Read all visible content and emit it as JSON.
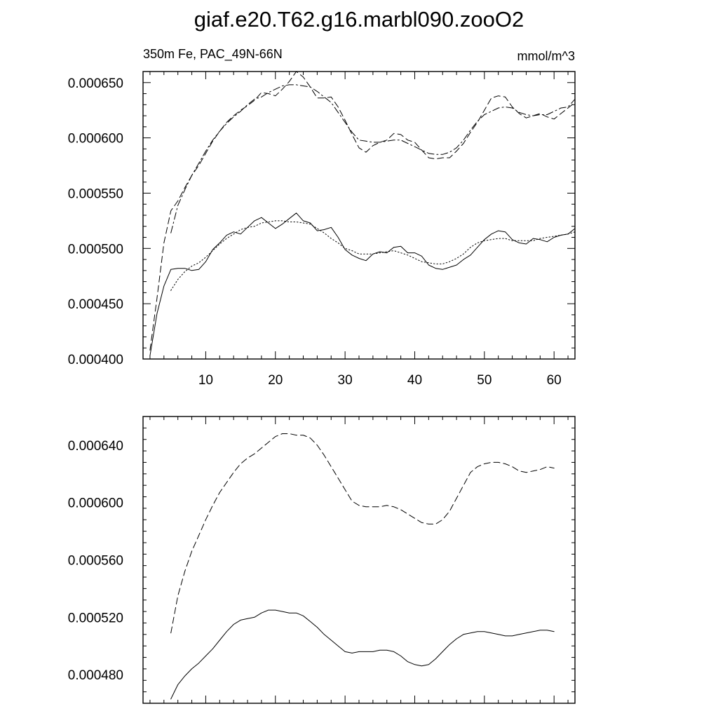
{
  "figure": {
    "title": "giaf.e20.T62.g16.marbl090.zooO2",
    "left_string": "350m Fe, PAC_49N-66N",
    "right_string": "mmol/m^3"
  },
  "chart_data": [
    {
      "type": "line",
      "xlim": [
        1,
        63
      ],
      "ylim": [
        0.0004,
        0.00066
      ],
      "xticks": [
        10,
        20,
        30,
        40,
        50,
        60
      ],
      "xtick_labels": [
        "10",
        "20",
        "30",
        "40",
        "50",
        "60"
      ],
      "yticks": [
        0.0004,
        0.00045,
        0.0005,
        0.00055,
        0.0006,
        0.00065
      ],
      "ytick_labels": [
        "0.000400",
        "0.000450",
        "0.000500",
        "0.000550",
        "0.000600",
        "0.000650"
      ],
      "grid": false,
      "series": [
        {
          "style": "dash",
          "x": [
            2,
            3,
            4,
            5,
            6,
            7,
            8,
            9,
            10,
            11,
            12,
            13,
            14,
            15,
            16,
            17,
            18,
            19,
            20,
            21,
            22,
            23,
            24,
            25,
            26,
            27,
            28,
            29,
            30,
            31,
            32,
            33,
            34,
            35,
            36,
            37,
            38,
            39,
            40,
            41,
            42,
            43,
            44,
            45,
            46,
            47,
            48,
            49,
            50,
            51,
            52,
            53,
            54,
            55,
            56,
            57,
            58,
            59,
            60,
            61,
            62,
            63
          ],
          "y": [
            0.000408,
            0.000455,
            0.000505,
            0.000534,
            0.000543,
            0.000555,
            0.000566,
            0.000575,
            0.000586,
            0.000597,
            0.000606,
            0.000614,
            0.00062,
            0.000625,
            0.000629,
            0.000634,
            0.000641,
            0.00064,
            0.000638,
            0.000644,
            0.000651,
            0.00066,
            0.000655,
            0.000646,
            0.000636,
            0.000636,
            0.000637,
            0.000628,
            0.000616,
            0.000603,
            0.000591,
            0.000587,
            0.000593,
            0.000596,
            0.000598,
            0.000604,
            0.000603,
            0.000598,
            0.000596,
            0.000589,
            0.000582,
            0.000581,
            0.000582,
            0.000582,
            0.000588,
            0.000595,
            0.000605,
            0.000614,
            0.000625,
            0.000636,
            0.000638,
            0.000637,
            0.000628,
            0.000622,
            0.000618,
            0.00062,
            0.000622,
            0.000619,
            0.000617,
            0.000622,
            0.000627,
            0.000632
          ]
        },
        {
          "style": "dashdot",
          "x": [
            5,
            6,
            7,
            8,
            9,
            10,
            11,
            12,
            13,
            14,
            15,
            16,
            17,
            18,
            19,
            20,
            21,
            22,
            23,
            24,
            25,
            26,
            27,
            28,
            29,
            30,
            31,
            32,
            33,
            34,
            35,
            36,
            37,
            38,
            39,
            40,
            41,
            42,
            43,
            44,
            45,
            46,
            47,
            48,
            49,
            50,
            51,
            52,
            53,
            54,
            55,
            56,
            57,
            58,
            59,
            60,
            61,
            62,
            63
          ],
          "y": [
            0.000514,
            0.000539,
            0.000553,
            0.000566,
            0.000577,
            0.000588,
            0.000598,
            0.000606,
            0.000613,
            0.000619,
            0.000624,
            0.00063,
            0.000635,
            0.000637,
            0.000641,
            0.000644,
            0.000647,
            0.000648,
            0.000648,
            0.000647,
            0.000646,
            0.000642,
            0.000637,
            0.000632,
            0.000623,
            0.000614,
            0.000605,
            0.000598,
            0.000597,
            0.000596,
            0.000596,
            0.000597,
            0.000598,
            0.000598,
            0.000595,
            0.000592,
            0.000589,
            0.000586,
            0.000585,
            0.000585,
            0.000587,
            0.000591,
            0.000598,
            0.000607,
            0.000615,
            0.000621,
            0.000624,
            0.000627,
            0.000628,
            0.000627,
            0.000623,
            0.000621,
            0.00062,
            0.000621,
            0.000621,
            0.000624,
            0.000627,
            0.000628,
            0.000635
          ]
        },
        {
          "style": "solid",
          "x": [
            2,
            3,
            4,
            5,
            6,
            7,
            8,
            9,
            10,
            11,
            12,
            13,
            14,
            15,
            16,
            17,
            18,
            19,
            20,
            21,
            22,
            23,
            24,
            25,
            26,
            27,
            28,
            29,
            30,
            31,
            32,
            33,
            34,
            35,
            36,
            37,
            38,
            39,
            40,
            41,
            42,
            43,
            44,
            45,
            46,
            47,
            48,
            49,
            50,
            51,
            52,
            53,
            54,
            55,
            56,
            57,
            58,
            59,
            60,
            61,
            62,
            63
          ],
          "y": [
            0.000403,
            0.000441,
            0.000466,
            0.000481,
            0.000482,
            0.000482,
            0.00048,
            0.000481,
            0.000488,
            0.000499,
            0.000505,
            0.000512,
            0.000515,
            0.000513,
            0.000519,
            0.000525,
            0.000528,
            0.000523,
            0.000518,
            0.000522,
            0.000527,
            0.000532,
            0.000525,
            0.000523,
            0.000516,
            0.000517,
            0.000519,
            0.00051,
            0.000499,
            0.000494,
            0.000491,
            0.000489,
            0.000495,
            0.000497,
            0.000496,
            0.000501,
            0.000502,
            0.000496,
            0.000496,
            0.000493,
            0.000485,
            0.000482,
            0.000481,
            0.000483,
            0.000485,
            0.00049,
            0.000494,
            0.000501,
            0.000508,
            0.000513,
            0.000516,
            0.000515,
            0.000508,
            0.000505,
            0.000504,
            0.000509,
            0.000508,
            0.000506,
            0.00051,
            0.000512,
            0.000513,
            0.000518
          ]
        },
        {
          "style": "dot",
          "x": [
            5,
            6,
            7,
            8,
            9,
            10,
            11,
            12,
            13,
            14,
            15,
            16,
            17,
            18,
            19,
            20,
            21,
            22,
            23,
            24,
            25,
            26,
            27,
            28,
            29,
            30,
            31,
            32,
            33,
            34,
            35,
            36,
            37,
            38,
            39,
            40,
            41,
            42,
            43,
            44,
            45,
            46,
            47,
            48,
            49,
            50,
            51,
            52,
            53,
            54,
            55,
            56,
            57,
            58,
            59,
            60,
            61,
            62,
            63
          ],
          "y": [
            0.000462,
            0.000472,
            0.000479,
            0.000484,
            0.000487,
            0.000492,
            0.000498,
            0.000504,
            0.000509,
            0.000513,
            0.000517,
            0.000519,
            0.00052,
            0.000523,
            0.000524,
            0.000525,
            0.000525,
            0.000524,
            0.000524,
            0.000523,
            0.000522,
            0.000518,
            0.000514,
            0.000509,
            0.000505,
            0.0005,
            0.000498,
            0.000495,
            0.000495,
            0.000495,
            0.000496,
            0.000497,
            0.000498,
            0.000496,
            0.000494,
            0.000491,
            0.000488,
            0.000487,
            0.000486,
            0.000486,
            0.000488,
            0.000491,
            0.000495,
            0.000501,
            0.000505,
            0.000507,
            0.000508,
            0.000509,
            0.000509,
            0.000507,
            0.000507,
            0.000507,
            0.000507,
            0.000509,
            0.00051,
            0.000511,
            0.000512,
            0.000513,
            0.000515
          ]
        }
      ]
    },
    {
      "type": "line",
      "xlim": [
        1,
        63
      ],
      "ylim": [
        0.00046,
        0.00066
      ],
      "xticks": [
        10,
        20,
        30,
        40,
        50,
        60
      ],
      "xtick_labels": [],
      "yticks": [
        0.00048,
        0.00052,
        0.00056,
        0.0006,
        0.00064
      ],
      "ytick_labels": [
        "0.000480",
        "0.000520",
        "0.000560",
        "0.000600",
        "0.000640"
      ],
      "grid": false,
      "series": [
        {
          "style": "dash",
          "x": [
            5,
            6,
            7,
            8,
            9,
            10,
            11,
            12,
            13,
            14,
            15,
            16,
            17,
            18,
            19,
            20,
            21,
            22,
            23,
            24,
            25,
            26,
            27,
            28,
            29,
            30,
            31,
            32,
            33,
            34,
            35,
            36,
            37,
            38,
            39,
            40,
            41,
            42,
            43,
            44,
            45,
            46,
            47,
            48,
            49,
            50,
            51,
            52,
            53,
            54,
            55,
            56,
            57,
            58,
            59,
            60
          ],
          "y": [
            0.000509,
            0.000535,
            0.000552,
            0.000566,
            0.000577,
            0.000588,
            0.000598,
            0.000607,
            0.000614,
            0.000621,
            0.000627,
            0.000631,
            0.000634,
            0.000638,
            0.000642,
            0.000646,
            0.000648,
            0.000648,
            0.000647,
            0.000647,
            0.000645,
            0.00064,
            0.000633,
            0.000625,
            0.000617,
            0.000609,
            0.000601,
            0.000598,
            0.000597,
            0.000597,
            0.000597,
            0.000598,
            0.000597,
            0.000595,
            0.000592,
            0.000589,
            0.000586,
            0.000585,
            0.000585,
            0.000588,
            0.000594,
            0.000603,
            0.000612,
            0.000621,
            0.000625,
            0.000627,
            0.000628,
            0.000628,
            0.000627,
            0.000625,
            0.000622,
            0.000621,
            0.000622,
            0.000623,
            0.000625,
            0.000624
          ]
        },
        {
          "style": "solid",
          "x": [
            5,
            6,
            7,
            8,
            9,
            10,
            11,
            12,
            13,
            14,
            15,
            16,
            17,
            18,
            19,
            20,
            21,
            22,
            23,
            24,
            25,
            26,
            27,
            28,
            29,
            30,
            31,
            32,
            33,
            34,
            35,
            36,
            37,
            38,
            39,
            40,
            41,
            42,
            43,
            44,
            45,
            46,
            47,
            48,
            49,
            50,
            51,
            52,
            53,
            54,
            55,
            56,
            57,
            58,
            59,
            60
          ],
          "y": [
            0.000463,
            0.000473,
            0.000479,
            0.000484,
            0.000488,
            0.000493,
            0.000498,
            0.000504,
            0.00051,
            0.000515,
            0.000518,
            0.000519,
            0.00052,
            0.000523,
            0.000525,
            0.000525,
            0.000524,
            0.000523,
            0.000523,
            0.000521,
            0.000517,
            0.000513,
            0.000508,
            0.000504,
            0.0005,
            0.000496,
            0.000495,
            0.000496,
            0.000496,
            0.000496,
            0.000497,
            0.000497,
            0.000496,
            0.000493,
            0.000489,
            0.000487,
            0.000486,
            0.000487,
            0.000491,
            0.000496,
            0.000501,
            0.000505,
            0.000508,
            0.000509,
            0.00051,
            0.00051,
            0.000509,
            0.000508,
            0.000507,
            0.000507,
            0.000508,
            0.000509,
            0.00051,
            0.000511,
            0.000511,
            0.00051
          ]
        }
      ]
    }
  ]
}
